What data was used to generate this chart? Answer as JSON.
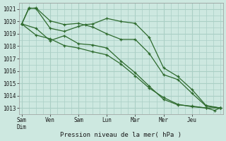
{
  "title": "",
  "xlabel": "Pression niveau de la mer( hPa )",
  "ylabel": "",
  "bg_color": "#cde8e0",
  "grid_color": "#aacfc5",
  "line_color": "#2d6a2d",
  "ylim": [
    1012.5,
    1021.5
  ],
  "xlim": [
    -0.1,
    7.1
  ],
  "xtick_labels": [
    "Sam\nDim",
    "Ven",
    "Sam",
    "Lun",
    "Mar",
    "Mer",
    "Jeu"
  ],
  "xtick_positions": [
    0,
    1,
    2,
    3,
    4,
    5,
    6
  ],
  "ytick_values": [
    1013,
    1014,
    1015,
    1016,
    1017,
    1018,
    1019,
    1020,
    1021
  ],
  "series": [
    {
      "x": [
        0.0,
        0.25,
        0.5,
        1.0,
        1.5,
        2.0,
        2.5,
        3.0,
        3.5,
        4.0,
        4.5,
        5.0,
        5.5,
        6.0,
        6.5,
        7.0
      ],
      "y": [
        1019.8,
        1021.05,
        1021.1,
        1020.05,
        1019.75,
        1019.85,
        1019.55,
        1019.0,
        1018.55,
        1018.55,
        1017.4,
        1015.7,
        1015.3,
        1014.2,
        1013.15,
        1013.0
      ]
    },
    {
      "x": [
        0.0,
        0.25,
        0.5,
        1.0,
        1.5,
        2.0,
        2.25,
        2.5,
        3.0,
        3.5,
        4.0,
        4.5,
        5.0,
        5.5,
        6.0,
        6.5,
        7.0
      ],
      "y": [
        1019.8,
        1021.1,
        1021.05,
        1019.45,
        1019.2,
        1019.6,
        1019.75,
        1019.8,
        1020.25,
        1020.0,
        1019.85,
        1018.7,
        1016.25,
        1015.55,
        1014.5,
        1013.2,
        1013.0
      ]
    },
    {
      "x": [
        0.0,
        0.5,
        1.0,
        1.5,
        2.0,
        2.5,
        3.0,
        3.5,
        4.0,
        4.5,
        5.0,
        5.5,
        6.0,
        6.5,
        7.0
      ],
      "y": [
        1019.8,
        1019.45,
        1018.45,
        1018.85,
        1018.2,
        1018.1,
        1017.85,
        1016.8,
        1015.85,
        1014.75,
        1013.7,
        1013.25,
        1013.15,
        1013.0,
        1013.0
      ]
    },
    {
      "x": [
        0.0,
        0.5,
        1.0,
        1.5,
        2.0,
        2.5,
        3.0,
        3.5,
        4.0,
        4.5,
        5.0,
        5.5,
        6.0,
        6.5,
        6.8,
        7.0
      ],
      "y": [
        1019.8,
        1018.9,
        1018.6,
        1018.05,
        1017.85,
        1017.55,
        1017.3,
        1016.55,
        1015.6,
        1014.6,
        1013.85,
        1013.3,
        1013.1,
        1013.0,
        1012.8,
        1013.0
      ]
    }
  ]
}
